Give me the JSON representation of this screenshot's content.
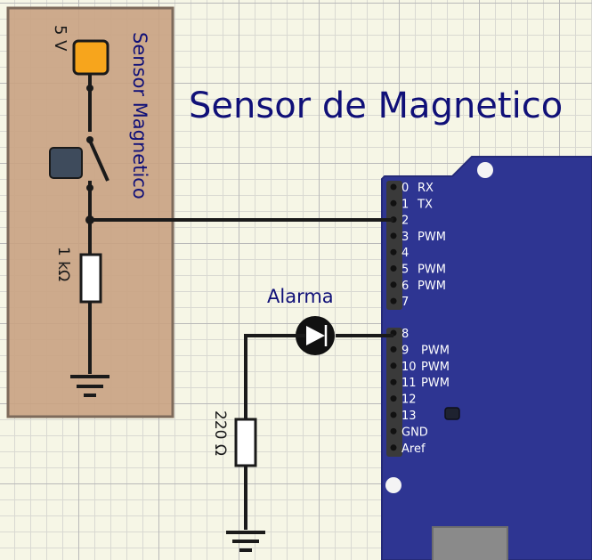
{
  "title": "Sensor de Magnetico",
  "sensor_box_label": "Sensor Magnetico",
  "supply_label": "5 V",
  "resistor1_label": "1 kΩ",
  "resistor2_label": "220 Ω",
  "alarm_label": "Alarma",
  "arduino_pins": [
    {
      "num": "0",
      "func": "RX"
    },
    {
      "num": "1",
      "func": "TX"
    },
    {
      "num": "2",
      "func": ""
    },
    {
      "num": "3",
      "func": "PWM"
    },
    {
      "num": "4",
      "func": ""
    },
    {
      "num": "5",
      "func": "PWM"
    },
    {
      "num": "6",
      "func": "PWM"
    },
    {
      "num": "7",
      "func": ""
    },
    {
      "num": "8",
      "func": ""
    },
    {
      "num": "9",
      "func": "PWM"
    },
    {
      "num": "10",
      "func": "PWM"
    },
    {
      "num": "11",
      "func": "PWM"
    },
    {
      "num": "12",
      "func": ""
    },
    {
      "num": "13",
      "func": ""
    },
    {
      "num": "GND",
      "func": ""
    },
    {
      "num": "Aref",
      "func": ""
    }
  ],
  "colors": {
    "title": "#101078",
    "wire": "#1a1a1a",
    "sensor_box": "#c9a282",
    "arduino_board": "#2e3592",
    "supply_pin": "#f7a51c",
    "switch_button": "#3e4b5c"
  }
}
